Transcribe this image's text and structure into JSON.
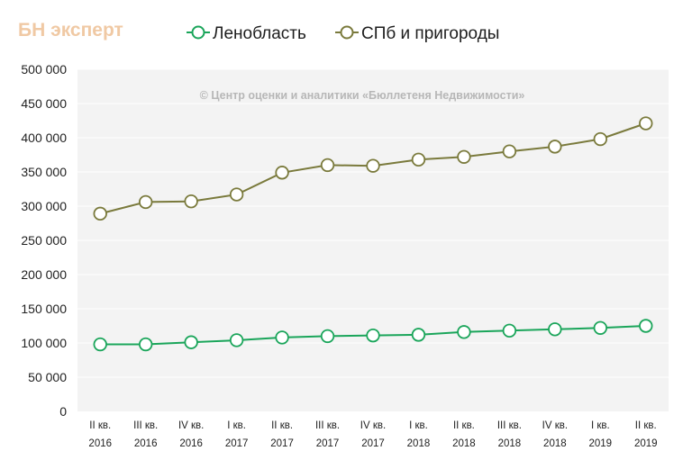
{
  "brand": {
    "text": "БН эксперт"
  },
  "chart_data": {
    "type": "line",
    "title": "",
    "xlabel": "",
    "ylabel": "",
    "ylim": [
      0,
      500000
    ],
    "ytick_step": 50000,
    "grid": true,
    "legend_position": "top-center",
    "watermark": "© Центр оценки и аналитики «Бюллетеня Недвижимости»",
    "categories": [
      [
        "II кв.",
        "2016"
      ],
      [
        "III кв.",
        "2016"
      ],
      [
        "IV кв.",
        "2016"
      ],
      [
        "I кв.",
        "2017"
      ],
      [
        "II кв.",
        "2017"
      ],
      [
        "III кв.",
        "2017"
      ],
      [
        "IV кв.",
        "2017"
      ],
      [
        "I кв.",
        "2018"
      ],
      [
        "II кв.",
        "2018"
      ],
      [
        "III кв.",
        "2018"
      ],
      [
        "IV кв.",
        "2018"
      ],
      [
        "I кв.",
        "2019"
      ],
      [
        "II кв.",
        "2019"
      ]
    ],
    "series": [
      {
        "name": "Ленобласть",
        "color": "#1aa55a",
        "values": [
          98000,
          98000,
          101000,
          104000,
          108000,
          110000,
          111000,
          112000,
          116000,
          118000,
          120000,
          122000,
          125000
        ]
      },
      {
        "name": "СПб и пригороды",
        "color": "#7a7a3c",
        "values": [
          289000,
          306000,
          307000,
          317000,
          349000,
          360000,
          359000,
          368000,
          372000,
          380000,
          387000,
          398000,
          421000
        ]
      }
    ]
  }
}
